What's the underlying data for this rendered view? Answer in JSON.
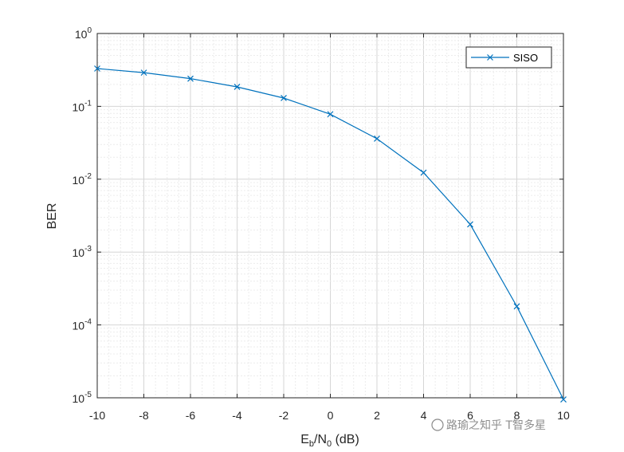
{
  "chart_data": {
    "type": "line",
    "title": "",
    "xlabel_main": "E",
    "xlabel_sub1": "b",
    "xlabel_mid": "/N",
    "xlabel_sub2": "0",
    "xlabel_tail": " (dB)",
    "ylabel": "BER",
    "xlim": [
      -10,
      10
    ],
    "ylim": [
      1e-05,
      1
    ],
    "yscale": "log",
    "grid": "on (major and minor)",
    "legend_position": "top-right",
    "x_ticks": [
      "-10",
      "-8",
      "-6",
      "-4",
      "-2",
      "0",
      "2",
      "4",
      "6",
      "8",
      "10"
    ],
    "y_ticks": [
      {
        "base": "10",
        "exp": "0"
      },
      {
        "base": "10",
        "exp": "-1"
      },
      {
        "base": "10",
        "exp": "-2"
      },
      {
        "base": "10",
        "exp": "-3"
      },
      {
        "base": "10",
        "exp": "-4"
      },
      {
        "base": "10",
        "exp": "-5"
      }
    ],
    "series": [
      {
        "name": "SISO",
        "color": "#0072BD",
        "marker": "x",
        "x": [
          -10,
          -8,
          -6,
          -4,
          -2,
          0,
          2,
          4,
          6,
          8,
          10
        ],
        "y": [
          0.33,
          0.29,
          0.24,
          0.185,
          0.13,
          0.078,
          0.036,
          0.0123,
          0.0024,
          0.00018,
          9.5e-06
        ]
      }
    ]
  },
  "watermark": {
    "text": "路瑜之知乎 T智多星"
  }
}
